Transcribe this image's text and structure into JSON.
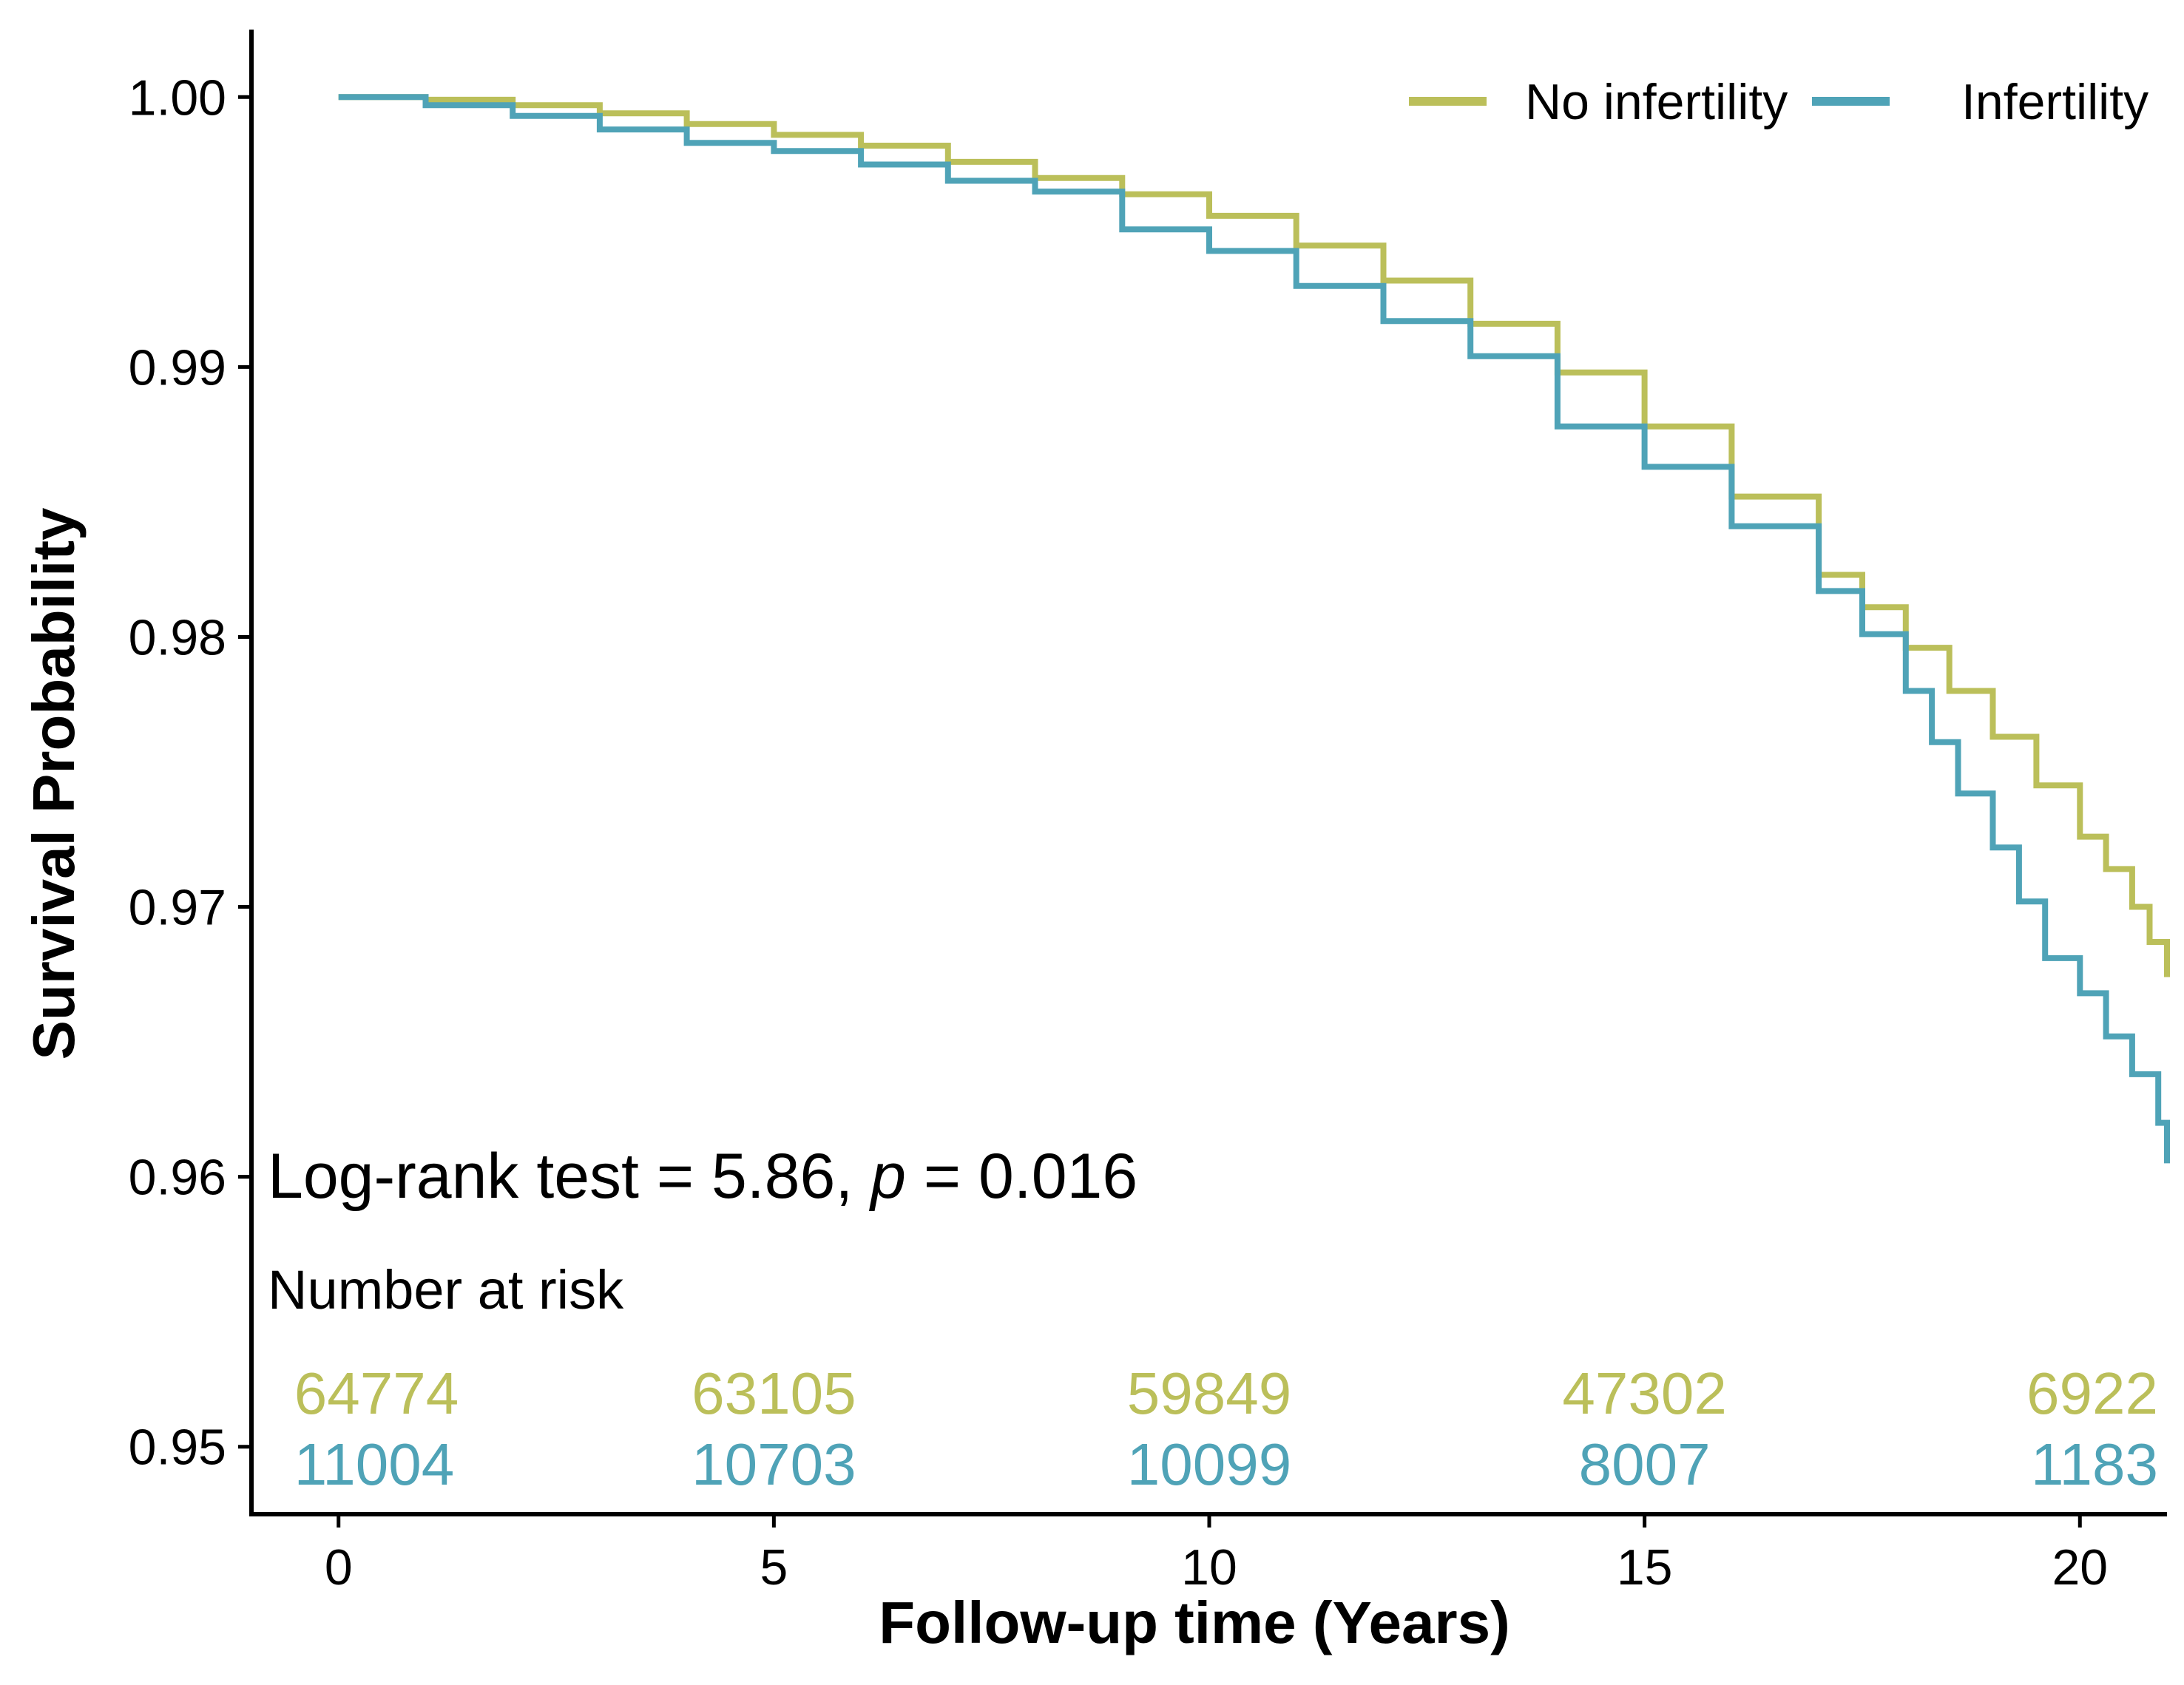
{
  "chart_data": {
    "type": "line",
    "subtype": "kaplan-meier step",
    "title": "",
    "xlabel": "Follow-up time (Years)",
    "ylabel": "Survival Probability",
    "xlim": [
      -1,
      21
    ],
    "ylim": [
      0.9475,
      1.0025
    ],
    "xticks": [
      0,
      5,
      10,
      15,
      20
    ],
    "xtick_labels": [
      "0",
      "5",
      "10",
      "15",
      "20"
    ],
    "yticks": [
      0.95,
      0.96,
      0.97,
      0.98,
      0.99,
      1.0
    ],
    "ytick_labels": [
      "0.95",
      "0.96",
      "0.97",
      "0.98",
      "0.99",
      "1.00"
    ],
    "grid": false,
    "legend_position": "top-right",
    "series": [
      {
        "name": "No infertility",
        "color": "#bbbf5a",
        "x": [
          0,
          1,
          2,
          3,
          4,
          5,
          6,
          7,
          8,
          9,
          10,
          11,
          12,
          13,
          14,
          15,
          16,
          17,
          17.5,
          18,
          18.5,
          19,
          19.5,
          20,
          20.3,
          20.6,
          20.8,
          21
        ],
        "y": [
          1.0,
          0.9999,
          0.9997,
          0.9994,
          0.999,
          0.9986,
          0.9982,
          0.9976,
          0.997,
          0.9964,
          0.9956,
          0.9945,
          0.9932,
          0.9916,
          0.9898,
          0.9878,
          0.9852,
          0.9823,
          0.9811,
          0.9796,
          0.978,
          0.9763,
          0.9745,
          0.9726,
          0.9714,
          0.97,
          0.9687,
          0.9674
        ]
      },
      {
        "name": "Infertility",
        "color": "#4fa3b7",
        "x": [
          0,
          1,
          2,
          3,
          4,
          5,
          6,
          7,
          8,
          9,
          10,
          11,
          12,
          13,
          14,
          15,
          16,
          17,
          17.5,
          18,
          18.3,
          18.6,
          19,
          19.3,
          19.6,
          20,
          20.3,
          20.6,
          20.9,
          21
        ],
        "y": [
          1.0,
          0.9997,
          0.9993,
          0.9988,
          0.9983,
          0.998,
          0.9975,
          0.9969,
          0.9965,
          0.9951,
          0.9943,
          0.993,
          0.9917,
          0.9904,
          0.9878,
          0.9863,
          0.9841,
          0.9817,
          0.9801,
          0.978,
          0.9761,
          0.9742,
          0.9722,
          0.9702,
          0.9681,
          0.9668,
          0.9652,
          0.9638,
          0.962,
          0.9605
        ]
      }
    ],
    "annotation": {
      "prefix": "Log-rank test = 5.86, ",
      "p_symbol": "p",
      "suffix": " = 0.016"
    },
    "risk_table": {
      "title": "Number at risk",
      "times": [
        0,
        5,
        10,
        15,
        20
      ],
      "rows": [
        {
          "name": "No infertility",
          "color": "#bbbf5a",
          "values": [
            "64774",
            "63105",
            "59849",
            "47302",
            "6922"
          ]
        },
        {
          "name": "Infertility",
          "color": "#4fa3b7",
          "values": [
            "11004",
            "10703",
            "10099",
            "8007",
            "1183"
          ]
        }
      ]
    }
  }
}
